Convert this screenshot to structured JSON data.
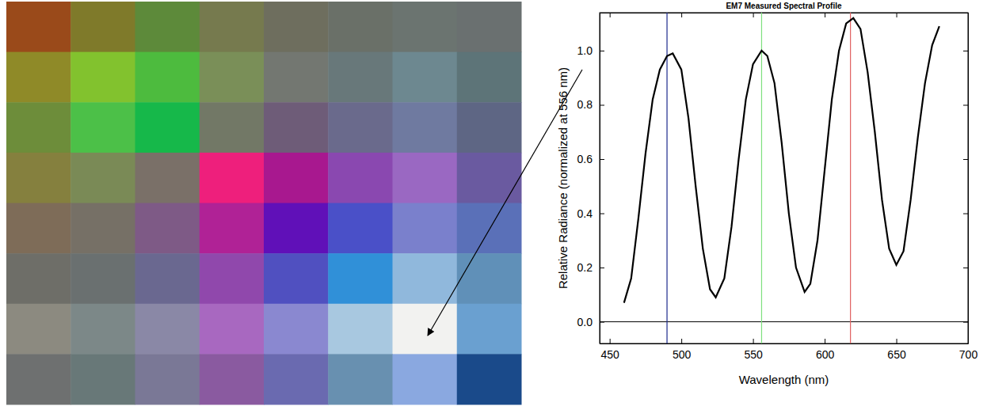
{
  "chart_data": {
    "type": "line",
    "title": "EM7 Measured Spectral Profile",
    "x_label": "Wavelength (nm)",
    "y_label": "Relative Radiance (normalized at 556 nm)",
    "x": [
      460,
      465,
      470,
      475,
      480,
      485,
      490,
      494,
      500,
      505,
      510,
      515,
      520,
      524,
      530,
      535,
      540,
      545,
      550,
      556,
      560,
      565,
      570,
      575,
      580,
      586,
      590,
      595,
      600,
      605,
      610,
      615,
      620,
      625,
      630,
      635,
      640,
      645,
      650,
      655,
      660,
      665,
      670,
      675,
      680
    ],
    "series": [
      {
        "color": "#000000",
        "line_style": "solid",
        "values": [
          0.07,
          0.16,
          0.38,
          0.62,
          0.82,
          0.93,
          0.98,
          0.99,
          0.93,
          0.75,
          0.5,
          0.27,
          0.12,
          0.09,
          0.16,
          0.35,
          0.6,
          0.82,
          0.95,
          1.0,
          0.98,
          0.88,
          0.66,
          0.4,
          0.2,
          0.11,
          0.14,
          0.3,
          0.56,
          0.82,
          1.0,
          1.1,
          1.12,
          1.08,
          0.92,
          0.7,
          0.45,
          0.27,
          0.21,
          0.26,
          0.45,
          0.68,
          0.88,
          1.02,
          1.09
        ]
      }
    ],
    "xlim": [
      443,
      700
    ],
    "xticks": [
      450,
      500,
      550,
      600,
      650,
      700
    ],
    "ylim": [
      -0.08,
      1.14
    ],
    "yticks": [
      {
        "value": 0,
        "label": "0.0"
      },
      0.2,
      0.4,
      0.6,
      0.8,
      {
        "value": 1,
        "label": "1.0"
      }
    ],
    "vlines": [
      {
        "value": 490,
        "color": "#1c2a8c"
      },
      {
        "value": 556,
        "color": "#7ee07e"
      },
      {
        "value": 618,
        "color": "#e06060"
      }
    ],
    "hlines": [
      {
        "value": 0,
        "color": "#000000"
      }
    ],
    "grid": false
  },
  "patch_grid": {
    "colors": [
      [
        "#9a4a1a",
        "#7f7a2a",
        "#5d8a3a",
        "#767a4e",
        "#6e6e5e",
        "#6a7068",
        "#6b7470",
        "#6a7070"
      ],
      [
        "#8f8a28",
        "#82c22e",
        "#4dbb3e",
        "#7a8f58",
        "#737771",
        "#68787a",
        "#6d8890",
        "#5d7478"
      ],
      [
        "#6d8d3a",
        "#4cc048",
        "#16b84a",
        "#727866",
        "#6e5c78",
        "#6a6a8c",
        "#6f7aa0",
        "#5e6684"
      ],
      [
        "#85803e",
        "#7a8a56",
        "#7a7068",
        "#ee1f7c",
        "#a8188f",
        "#8a48b0",
        "#9a68c2",
        "#6a5aa0"
      ],
      [
        "#7e6c58",
        "#767066",
        "#7e5a86",
        "#b02296",
        "#6010b8",
        "#4a50c8",
        "#7a80cc",
        "#5a70b8"
      ],
      [
        "#6e6e68",
        "#6a7070",
        "#6a6890",
        "#9048ac",
        "#5050c0",
        "#3090d8",
        "#90b8dc",
        "#6090b8"
      ],
      [
        "#8c8a80",
        "#7c8888",
        "#8a88a6",
        "#a868c0",
        "#8a88d0",
        "#a8c8e0",
        "#f2f2f0",
        "#6aa0d0"
      ],
      [
        "#6e7070",
        "#687878",
        "#7a7896",
        "#8a5aa0",
        "#6a6ab0",
        "#6890b0",
        "#8aa8e0",
        "#1a4a8a"
      ]
    ]
  }
}
